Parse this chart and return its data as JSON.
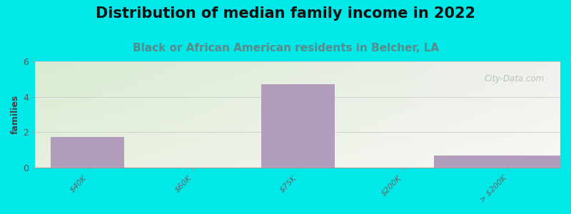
{
  "title": "Distribution of median family income in 2022",
  "subtitle": "Black or African American residents in Belcher, LA",
  "ylabel": "families",
  "categories": [
    "$40K",
    "$60K",
    "$75K",
    "$200K",
    "> $200K"
  ],
  "values": [
    1.7,
    0,
    4.7,
    0,
    0.65
  ],
  "bar_color": "#b39dbd",
  "background_outer": "#00e8e8",
  "background_inner_top_left": "#d8ecd0",
  "background_inner_bottom_right": "#f5f5f0",
  "ylim": [
    0,
    6
  ],
  "yticks": [
    0,
    2,
    4,
    6
  ],
  "title_fontsize": 15,
  "subtitle_fontsize": 11,
  "subtitle_color": "#5a8a8a",
  "watermark_text": "City-Data.com",
  "watermark_color": "#b0b8b0",
  "bar_width": 0.7
}
